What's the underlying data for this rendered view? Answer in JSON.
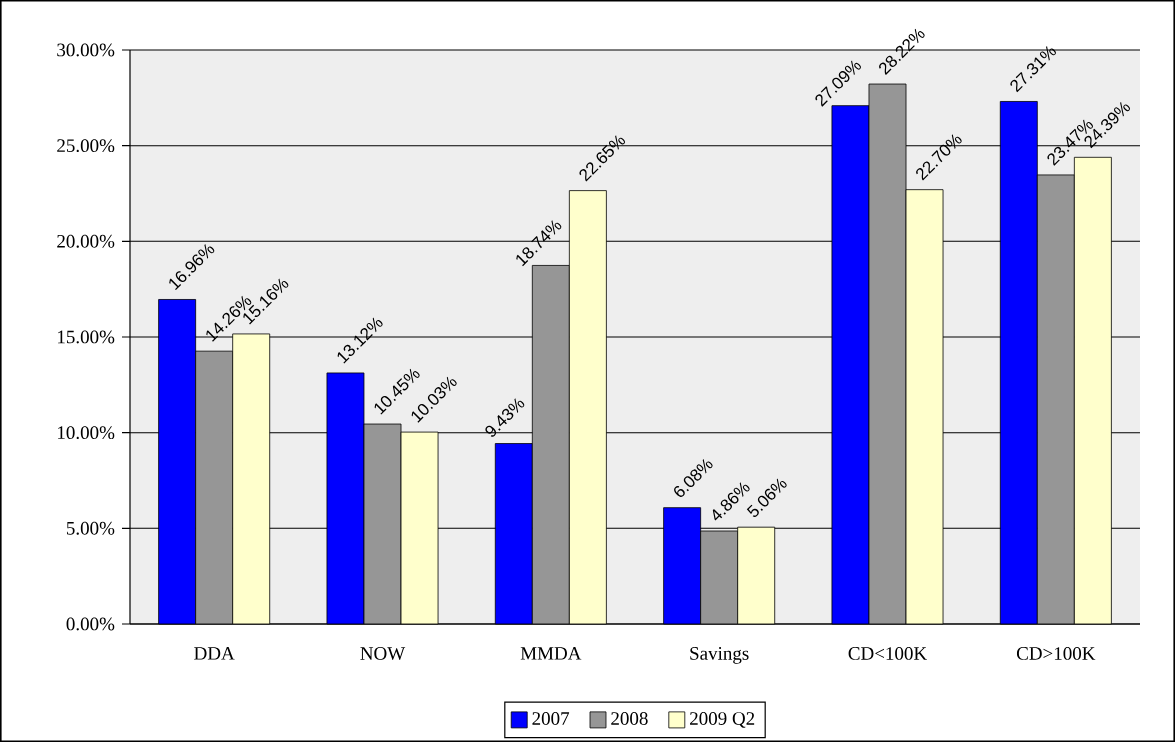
{
  "chart_data": {
    "type": "bar",
    "categories": [
      "DDA",
      "NOW",
      "MMDA",
      "Savings",
      "CD<100K",
      "CD>100K"
    ],
    "series": [
      {
        "name": "2007",
        "color": "#0000ff",
        "values": [
          16.96,
          13.12,
          9.43,
          6.08,
          27.09,
          27.31
        ],
        "value_labels": [
          "16.96%",
          "13.12%",
          "9.43%",
          "6.08%",
          "27.09%",
          "27.31%"
        ]
      },
      {
        "name": "2008",
        "color": "#969696",
        "values": [
          14.26,
          10.45,
          18.74,
          4.86,
          28.22,
          23.47
        ],
        "value_labels": [
          "14.26%",
          "10.45%",
          "18.74%",
          "4.86%",
          "28.22%",
          "23.47%"
        ]
      },
      {
        "name": "2009 Q2",
        "color": "#ffffcc",
        "values": [
          15.16,
          10.03,
          22.65,
          5.06,
          22.7,
          24.39
        ],
        "value_labels": [
          "15.16%",
          "10.03%",
          "22.65%",
          "5.06%",
          "22.70%",
          "24.39%"
        ]
      }
    ],
    "ylim": [
      0,
      30
    ],
    "yticks": [
      {
        "value": 0,
        "label": "0.00%"
      },
      {
        "value": 5,
        "label": "5.00%"
      },
      {
        "value": 10,
        "label": "10.00%"
      },
      {
        "value": 15,
        "label": "15.00%"
      },
      {
        "value": 20,
        "label": "20.00%"
      },
      {
        "value": 25,
        "label": "25.00%"
      },
      {
        "value": 30,
        "label": "30.00%"
      }
    ],
    "grid": "y",
    "legend": "bottom"
  }
}
